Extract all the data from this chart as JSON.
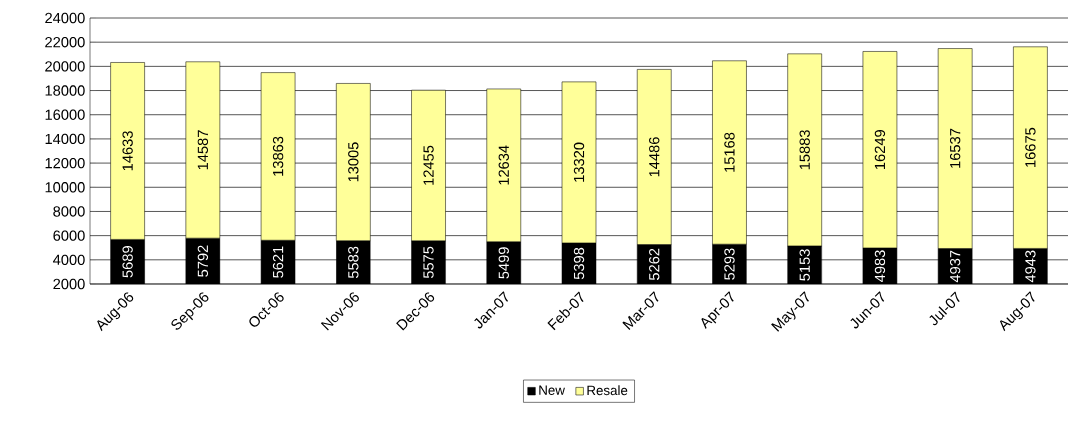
{
  "chart_data": {
    "type": "bar",
    "stacked": true,
    "categories": [
      "Aug-06",
      "Sep-06",
      "Oct-06",
      "Nov-06",
      "Dec-06",
      "Jan-07",
      "Feb-07",
      "Mar-07",
      "Apr-07",
      "May-07",
      "Jun-07",
      "Jul-07",
      "Aug-07"
    ],
    "series": [
      {
        "name": "New",
        "color": "#000000",
        "values": [
          5689,
          5792,
          5621,
          5583,
          5575,
          5499,
          5398,
          5262,
          5293,
          5153,
          4983,
          4937,
          4943
        ]
      },
      {
        "name": "Resale",
        "color": "#ffff99",
        "values": [
          14633,
          14587,
          13863,
          13005,
          12455,
          12634,
          13320,
          14486,
          15168,
          15883,
          16249,
          16537,
          16675
        ]
      }
    ],
    "ylim": [
      2000,
      24000
    ],
    "yticks": [
      2000,
      4000,
      6000,
      8000,
      10000,
      12000,
      14000,
      16000,
      18000,
      20000,
      22000,
      24000
    ],
    "grid": "y",
    "legend": "bottom",
    "data_labels": true
  }
}
